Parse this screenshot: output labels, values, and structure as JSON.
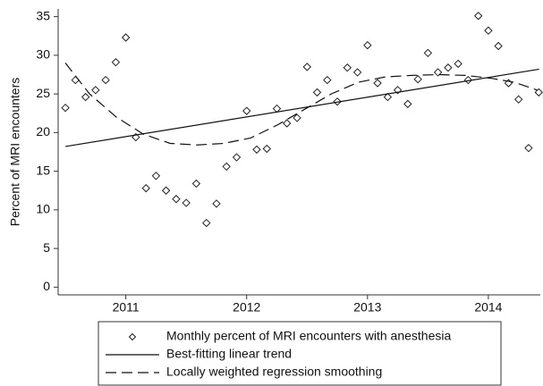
{
  "chart_data": {
    "type": "scatter",
    "y_label": "Percent of MRI encounters",
    "xlim": [
      2010.94,
      2014.93
    ],
    "ylim": [
      -1,
      36
    ],
    "xticks": [
      {
        "value": 2011.5,
        "label": "2011"
      },
      {
        "value": 2012.5,
        "label": "2012"
      },
      {
        "value": 2013.5,
        "label": "2013"
      },
      {
        "value": 2014.5,
        "label": "2014"
      }
    ],
    "yticks": [
      0,
      5,
      10,
      15,
      20,
      25,
      30,
      35
    ],
    "series": [
      {
        "name": "Monthly percent of MRI encounters with anesthesia",
        "color": "#222222",
        "style": "diamond",
        "x": [
          2011,
          2011.083,
          2011.167,
          2011.25,
          2011.333,
          2011.417,
          2011.5,
          2011.583,
          2011.667,
          2011.75,
          2011.833,
          2011.917,
          2012,
          2012.083,
          2012.167,
          2012.25,
          2012.333,
          2012.417,
          2012.5,
          2012.583,
          2012.667,
          2012.75,
          2012.833,
          2012.917,
          2013,
          2013.083,
          2013.167,
          2013.25,
          2013.333,
          2013.417,
          2013.5,
          2013.583,
          2013.667,
          2013.75,
          2013.833,
          2013.917,
          2014,
          2014.083,
          2014.167,
          2014.25,
          2014.333,
          2014.417,
          2014.5,
          2014.583,
          2014.667,
          2014.75,
          2014.833,
          2014.917
        ],
        "values": [
          23.2,
          26.8,
          24.6,
          25.5,
          26.8,
          29.1,
          32.3,
          19.4,
          12.8,
          14.4,
          12.5,
          11.4,
          10.9,
          13.4,
          8.3,
          10.8,
          15.6,
          16.8,
          22.8,
          17.8,
          17.9,
          23.1,
          21.2,
          21.9,
          28.5,
          25.2,
          26.8,
          24.0,
          28.4,
          27.8,
          31.3,
          26.4,
          24.6,
          25.5,
          23.7,
          26.9,
          30.3,
          27.8,
          28.4,
          28.9,
          26.8,
          35.1,
          33.2,
          31.2,
          26.4,
          24.3,
          18.0,
          25.2
        ]
      },
      {
        "name": "Best-fitting linear trend",
        "color": "#111111",
        "style": "solid",
        "x": [
          2011,
          2014.92
        ],
        "values": [
          18.2,
          28.2
        ]
      },
      {
        "name": "Locally weighted regression smoothing",
        "color": "#111111",
        "style": "dashed",
        "x": [
          2011,
          2011.2,
          2011.422,
          2011.644,
          2011.867,
          2012.089,
          2012.311,
          2012.533,
          2012.756,
          2012.978,
          2013.2,
          2013.422,
          2013.644,
          2013.867,
          2014.089,
          2014.311,
          2014.533,
          2014.719,
          2014.904
        ],
        "values": [
          29.0,
          25.0,
          22.0,
          19.8,
          18.6,
          18.4,
          18.6,
          19.3,
          21.0,
          23.0,
          25.0,
          26.5,
          27.2,
          27.4,
          27.5,
          27.4,
          27.0,
          26.5,
          25.5
        ]
      }
    ]
  }
}
